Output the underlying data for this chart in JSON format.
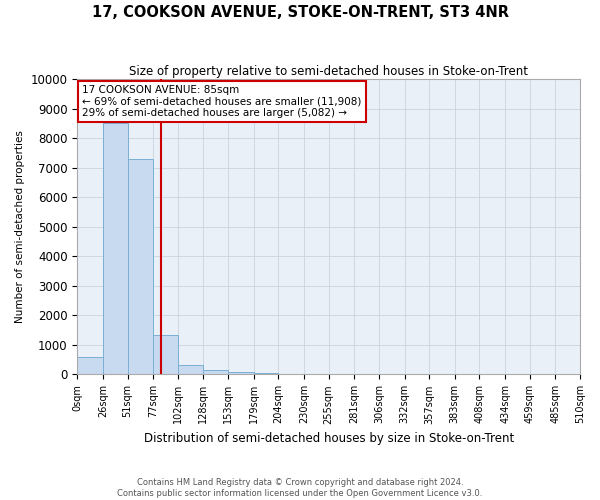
{
  "title": "17, COOKSON AVENUE, STOKE-ON-TRENT, ST3 4NR",
  "subtitle": "Size of property relative to semi-detached houses in Stoke-on-Trent",
  "xlabel": "Distribution of semi-detached houses by size in Stoke-on-Trent",
  "ylabel": "Number of semi-detached properties",
  "footer": "Contains HM Land Registry data © Crown copyright and database right 2024.\nContains public sector information licensed under the Open Government Licence v3.0.",
  "annotation_title": "17 COOKSON AVENUE: 85sqm",
  "annotation_line1": "← 69% of semi-detached houses are smaller (11,908)",
  "annotation_line2": "29% of semi-detached houses are larger (5,082) →",
  "property_size": 85,
  "bar_edges": [
    0,
    26,
    51,
    77,
    102,
    128,
    153,
    179,
    204,
    230,
    255,
    281,
    306,
    332,
    357,
    383,
    408,
    434,
    459,
    485,
    510
  ],
  "bar_heights": [
    580,
    8500,
    7300,
    1340,
    320,
    145,
    80,
    50,
    0,
    0,
    0,
    0,
    0,
    0,
    0,
    0,
    0,
    0,
    0,
    0
  ],
  "bar_color": "#c8daf0",
  "bar_edge_color": "#7aafd4",
  "vline_color": "#cc0000",
  "ylim": [
    0,
    10000
  ],
  "tick_labels": [
    "0sqm",
    "26sqm",
    "51sqm",
    "77sqm",
    "102sqm",
    "128sqm",
    "153sqm",
    "179sqm",
    "204sqm",
    "230sqm",
    "255sqm",
    "281sqm",
    "306sqm",
    "332sqm",
    "357sqm",
    "383sqm",
    "408sqm",
    "434sqm",
    "459sqm",
    "485sqm",
    "510sqm"
  ],
  "yticks": [
    0,
    1000,
    2000,
    3000,
    4000,
    5000,
    6000,
    7000,
    8000,
    9000,
    10000
  ],
  "annotation_box_color": "#ffffff",
  "annotation_box_edge": "#cc0000",
  "bg_color": "#eaf0f8"
}
